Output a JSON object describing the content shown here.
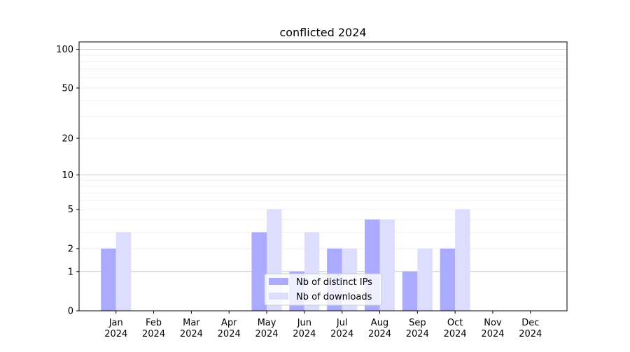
{
  "chart_data": {
    "type": "bar",
    "title": "conflicted 2024",
    "xlabel": "",
    "ylabel": "",
    "yscale": "log(1+y)",
    "ylim": [
      0,
      114
    ],
    "yticks": [
      0,
      1,
      2,
      5,
      10,
      20,
      50,
      100
    ],
    "categories": [
      "Jan\n2024",
      "Feb\n2024",
      "Mar\n2024",
      "Apr\n2024",
      "May\n2024",
      "Jun\n2024",
      "Jul\n2024",
      "Aug\n2024",
      "Sep\n2024",
      "Oct\n2024",
      "Nov\n2024",
      "Dec\n2024"
    ],
    "series": [
      {
        "name": "Nb of distinct IPs",
        "color": "#aaaaff",
        "values": [
          2,
          0,
          0,
          0,
          3,
          1,
          2,
          4,
          1,
          2,
          0,
          0
        ]
      },
      {
        "name": "Nb of downloads",
        "color": "#ddddff",
        "values": [
          3,
          0,
          0,
          0,
          5,
          3,
          2,
          4,
          2,
          5,
          0,
          0
        ]
      }
    ],
    "legend": "lower-center",
    "grid": true
  }
}
